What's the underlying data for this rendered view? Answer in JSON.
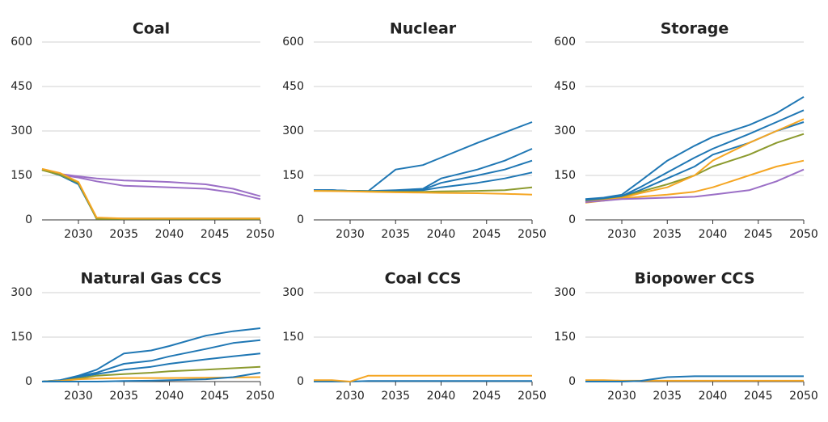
{
  "chart_data": [
    {
      "type": "line",
      "title": "Coal",
      "x": [
        2026,
        2028,
        2030,
        2032,
        2035,
        2038,
        2040,
        2044,
        2047,
        2050
      ],
      "xlim": [
        2026,
        2050
      ],
      "xticks": [
        2030,
        2035,
        2040,
        2045,
        2050
      ],
      "ylim": [
        0,
        600
      ],
      "yticks": [
        0,
        150,
        300,
        450,
        600
      ],
      "grid": true,
      "series": [
        {
          "color": "#9b6fc6",
          "values": [
            170,
            155,
            147,
            140,
            133,
            130,
            128,
            120,
            105,
            80
          ]
        },
        {
          "color": "#9b6fc6",
          "values": [
            170,
            152,
            143,
            130,
            115,
            112,
            110,
            105,
            92,
            70
          ]
        },
        {
          "color": "#1f77b4",
          "values": [
            170,
            150,
            120,
            5,
            5,
            5,
            5,
            5,
            5,
            5
          ]
        },
        {
          "color": "#8c9a2e",
          "values": [
            168,
            152,
            125,
            3,
            3,
            3,
            3,
            3,
            3,
            3
          ]
        },
        {
          "color": "#f5a623",
          "values": [
            172,
            158,
            128,
            8,
            5,
            5,
            5,
            5,
            5,
            5
          ]
        }
      ]
    },
    {
      "type": "line",
      "title": "Nuclear",
      "x": [
        2026,
        2028,
        2030,
        2032,
        2035,
        2038,
        2040,
        2044,
        2047,
        2050
      ],
      "xlim": [
        2026,
        2050
      ],
      "xticks": [
        2030,
        2035,
        2040,
        2045,
        2050
      ],
      "ylim": [
        0,
        600
      ],
      "yticks": [
        0,
        150,
        300,
        450,
        600
      ],
      "grid": true,
      "series": [
        {
          "color": "#1f77b4",
          "values": [
            100,
            100,
            98,
            97,
            170,
            185,
            210,
            260,
            295,
            330
          ]
        },
        {
          "color": "#1f77b4",
          "values": [
            100,
            100,
            98,
            97,
            100,
            105,
            140,
            170,
            200,
            240
          ]
        },
        {
          "color": "#1f77b4",
          "values": [
            100,
            100,
            98,
            97,
            98,
            102,
            125,
            150,
            170,
            200
          ]
        },
        {
          "color": "#1f77b4",
          "values": [
            100,
            100,
            98,
            97,
            97,
            100,
            110,
            125,
            140,
            160
          ]
        },
        {
          "color": "#8c9a2e",
          "values": [
            98,
            98,
            97,
            96,
            95,
            95,
            96,
            98,
            100,
            110
          ]
        },
        {
          "color": "#f5a623",
          "values": [
            98,
            97,
            96,
            95,
            93,
            92,
            91,
            90,
            88,
            85
          ]
        }
      ]
    },
    {
      "type": "line",
      "title": "Storage",
      "x": [
        2026,
        2028,
        2030,
        2032,
        2035,
        2038,
        2040,
        2044,
        2047,
        2050
      ],
      "xlim": [
        2026,
        2050
      ],
      "xticks": [
        2030,
        2035,
        2040,
        2045,
        2050
      ],
      "ylim": [
        0,
        600
      ],
      "yticks": [
        0,
        150,
        300,
        450,
        600
      ],
      "grid": true,
      "series": [
        {
          "color": "#1f77b4",
          "values": [
            70,
            75,
            85,
            130,
            200,
            250,
            280,
            320,
            360,
            415
          ]
        },
        {
          "color": "#1f77b4",
          "values": [
            68,
            72,
            80,
            110,
            160,
            210,
            240,
            290,
            330,
            370
          ]
        },
        {
          "color": "#1f77b4",
          "values": [
            65,
            70,
            78,
            100,
            140,
            180,
            220,
            260,
            300,
            330
          ]
        },
        {
          "color": "#8c9a2e",
          "values": [
            62,
            68,
            75,
            95,
            120,
            150,
            180,
            220,
            260,
            290
          ]
        },
        {
          "color": "#f5a623",
          "values": [
            60,
            66,
            74,
            90,
            110,
            150,
            200,
            260,
            300,
            340
          ]
        },
        {
          "color": "#f5a623",
          "values": [
            58,
            65,
            72,
            78,
            85,
            95,
            110,
            150,
            180,
            200
          ]
        },
        {
          "color": "#9b6fc6",
          "values": [
            60,
            65,
            70,
            72,
            75,
            78,
            85,
            100,
            130,
            170
          ]
        }
      ]
    },
    {
      "type": "line",
      "title": "Natural Gas CCS",
      "x": [
        2026,
        2028,
        2030,
        2032,
        2035,
        2038,
        2040,
        2044,
        2047,
        2050
      ],
      "xlim": [
        2026,
        2050
      ],
      "xticks": [
        2030,
        2035,
        2040,
        2045,
        2050
      ],
      "ylim": [
        0,
        300
      ],
      "yticks": [
        0,
        150,
        300
      ],
      "grid": true,
      "series": [
        {
          "color": "#1f77b4",
          "values": [
            0,
            5,
            20,
            40,
            95,
            105,
            120,
            155,
            170,
            180
          ]
        },
        {
          "color": "#1f77b4",
          "values": [
            0,
            5,
            18,
            30,
            60,
            70,
            85,
            110,
            130,
            140
          ]
        },
        {
          "color": "#1f77b4",
          "values": [
            0,
            3,
            15,
            25,
            40,
            50,
            60,
            75,
            85,
            95
          ]
        },
        {
          "color": "#8c9a2e",
          "values": [
            0,
            2,
            10,
            20,
            25,
            30,
            35,
            40,
            45,
            50
          ]
        },
        {
          "color": "#f5a623",
          "values": [
            0,
            2,
            8,
            10,
            12,
            12,
            12,
            13,
            14,
            15
          ]
        },
        {
          "color": "#1f77b4",
          "values": [
            0,
            0,
            0,
            0,
            2,
            3,
            5,
            8,
            15,
            30
          ]
        }
      ]
    },
    {
      "type": "line",
      "title": "Coal CCS",
      "x": [
        2026,
        2028,
        2030,
        2032,
        2035,
        2038,
        2040,
        2044,
        2047,
        2050
      ],
      "xlim": [
        2026,
        2050
      ],
      "xticks": [
        2030,
        2035,
        2040,
        2045,
        2050
      ],
      "ylim": [
        0,
        300
      ],
      "yticks": [
        0,
        150,
        300
      ],
      "grid": true,
      "series": [
        {
          "color": "#1f77b4",
          "values": [
            0,
            0,
            0,
            2,
            2,
            2,
            2,
            2,
            2,
            2
          ]
        },
        {
          "color": "#f5a623",
          "values": [
            5,
            5,
            0,
            20,
            20,
            20,
            20,
            20,
            20,
            20
          ]
        }
      ]
    },
    {
      "type": "line",
      "title": "Biopower CCS",
      "x": [
        2026,
        2028,
        2030,
        2032,
        2035,
        2038,
        2040,
        2044,
        2047,
        2050
      ],
      "xlim": [
        2026,
        2050
      ],
      "xticks": [
        2030,
        2035,
        2040,
        2045,
        2050
      ],
      "ylim": [
        0,
        300
      ],
      "yticks": [
        0,
        150,
        300
      ],
      "grid": true,
      "series": [
        {
          "color": "#f5a623",
          "values": [
            5,
            5,
            3,
            3,
            3,
            3,
            3,
            3,
            3,
            3
          ]
        },
        {
          "color": "#1f77b4",
          "values": [
            0,
            0,
            0,
            2,
            15,
            18,
            18,
            18,
            18,
            18
          ]
        }
      ]
    }
  ]
}
